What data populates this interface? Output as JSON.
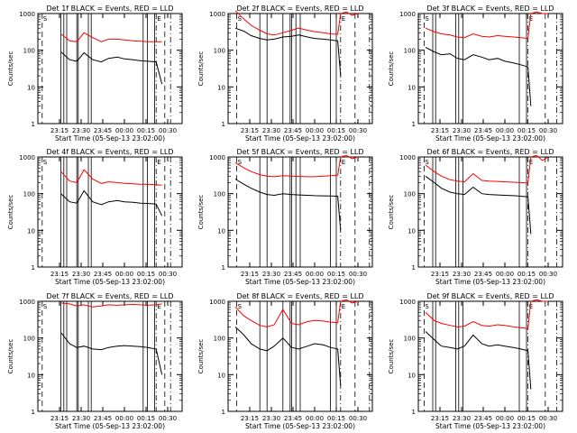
{
  "figure": {
    "ylabel": "Counts/sec",
    "xlabel": "Start Time (05-Sep-13 23:02:00)",
    "xtick_labels": [
      "23:15",
      "23:30",
      "23:45",
      "00:00",
      "00:15",
      "00:30"
    ],
    "ytick_labels": [
      "1",
      "10",
      "100",
      "1000"
    ],
    "annotations": [
      "S",
      "E"
    ],
    "colors": {
      "events": "#000000",
      "lld": "#ff0000",
      "axis": "#000000"
    }
  },
  "chart_data": [
    {
      "type": "line",
      "title": "Det 1f BLACK = Events, RED = LLD",
      "xlabel": "Start Time (05-Sep-13 23:02:00)",
      "ylabel": "Counts/sec",
      "x_minutes": [
        5,
        11,
        16,
        22,
        27,
        32,
        38,
        44,
        49,
        55,
        60,
        66,
        71,
        76,
        82,
        86,
        90
      ],
      "series": [
        {
          "name": "Events",
          "color": "#000000",
          "values": [
            null,
            null,
            90,
            55,
            50,
            85,
            55,
            48,
            60,
            65,
            58,
            55,
            52,
            50,
            48,
            12,
            null
          ]
        },
        {
          "name": "LLD",
          "color": "#ff0000",
          "values": [
            null,
            null,
            280,
            180,
            170,
            300,
            220,
            170,
            200,
            200,
            190,
            180,
            175,
            172,
            170,
            170,
            null
          ]
        }
      ],
      "vlines_solid": [
        16,
        18,
        20,
        27,
        28,
        35,
        37,
        73,
        76,
        81
      ],
      "vlines_dashed": [
        3,
        88
      ],
      "vlines_dashdot": [
        82,
        92
      ],
      "xlim": [
        0,
        100
      ],
      "ylim": [
        1,
        1000
      ],
      "yscale": "log"
    },
    {
      "type": "line",
      "title": "Det 2f BLACK = Events, RED = LLD",
      "xlabel": "Start Time (05-Sep-13 23:02:00)",
      "ylabel": "Counts/sec",
      "x_minutes": [
        5,
        11,
        16,
        22,
        27,
        32,
        38,
        44,
        49,
        55,
        60,
        66,
        71,
        76,
        78,
        82,
        86,
        90
      ],
      "series": [
        {
          "name": "Events",
          "color": "#000000",
          "values": [
            400,
            330,
            250,
            210,
            190,
            200,
            230,
            240,
            260,
            230,
            210,
            200,
            190,
            180,
            20,
            null,
            null,
            null
          ]
        },
        {
          "name": "LLD",
          "color": "#ff0000",
          "values": [
            1200,
            700,
            480,
            350,
            280,
            260,
            300,
            350,
            400,
            350,
            320,
            300,
            280,
            270,
            1000,
            1100,
            900,
            1000
          ]
        }
      ],
      "vlines_solid": [
        22,
        27,
        38,
        43,
        44,
        47,
        50,
        71,
        75
      ],
      "vlines_dashed": [
        6,
        88
      ],
      "vlines_dashdot": [
        78,
        98
      ],
      "xlim": [
        0,
        100
      ],
      "ylim": [
        1,
        1000
      ],
      "yscale": "log"
    },
    {
      "type": "line",
      "title": "Det 3f BLACK = Events, RED = LLD",
      "xlabel": "Start Time (05-Sep-13 23:02:00)",
      "ylabel": "Counts/sec",
      "x_minutes": [
        5,
        11,
        16,
        22,
        27,
        32,
        38,
        44,
        49,
        55,
        60,
        66,
        71,
        76,
        78,
        82,
        86,
        90
      ],
      "series": [
        {
          "name": "Events",
          "color": "#000000",
          "values": [
            120,
            90,
            75,
            80,
            60,
            55,
            75,
            65,
            55,
            60,
            50,
            45,
            40,
            35,
            3,
            null,
            null,
            null
          ]
        },
        {
          "name": "LLD",
          "color": "#ff0000",
          "values": [
            400,
            320,
            280,
            260,
            230,
            220,
            280,
            240,
            230,
            250,
            240,
            230,
            220,
            210,
            1000,
            1100,
            1000,
            1000
          ]
        }
      ],
      "vlines_solid": [
        10,
        12,
        26,
        28,
        31,
        70,
        75
      ],
      "vlines_dashed": [
        4,
        88
      ],
      "vlines_dashdot": [
        76,
        96
      ],
      "xlim": [
        0,
        100
      ],
      "ylim": [
        1,
        1000
      ],
      "yscale": "log"
    },
    {
      "type": "line",
      "title": "Det 4f BLACK = Events, RED = LLD",
      "xlabel": "Start Time (05-Sep-13 23:02:00)",
      "ylabel": "Counts/sec",
      "x_minutes": [
        5,
        11,
        16,
        22,
        27,
        32,
        38,
        44,
        49,
        55,
        60,
        66,
        71,
        76,
        82,
        86,
        90
      ],
      "series": [
        {
          "name": "Events",
          "color": "#000000",
          "values": [
            null,
            null,
            100,
            60,
            55,
            120,
            60,
            50,
            60,
            65,
            60,
            58,
            55,
            54,
            52,
            25,
            null
          ]
        },
        {
          "name": "LLD",
          "color": "#ff0000",
          "values": [
            null,
            null,
            400,
            220,
            200,
            450,
            250,
            190,
            210,
            200,
            190,
            185,
            180,
            180,
            175,
            170,
            null
          ]
        }
      ],
      "vlines_solid": [
        16,
        18,
        20,
        27,
        28,
        35,
        37,
        73,
        76,
        81
      ],
      "vlines_dashed": [
        3,
        88
      ],
      "vlines_dashdot": [
        82,
        92
      ],
      "xlim": [
        0,
        100
      ],
      "ylim": [
        1,
        1000
      ],
      "yscale": "log"
    },
    {
      "type": "line",
      "title": "Det 5f BLACK = Events, RED = LLD",
      "xlabel": "Start Time (05-Sep-13 23:02:00)",
      "ylabel": "Counts/sec",
      "x_minutes": [
        5,
        11,
        16,
        22,
        27,
        32,
        38,
        44,
        49,
        55,
        60,
        66,
        71,
        76,
        78,
        82,
        86,
        90
      ],
      "series": [
        {
          "name": "Events",
          "color": "#000000",
          "values": [
            250,
            180,
            140,
            110,
            95,
            90,
            100,
            95,
            92,
            90,
            88,
            87,
            86,
            85,
            10,
            null,
            null,
            null
          ]
        },
        {
          "name": "LLD",
          "color": "#ff0000",
          "values": [
            700,
            500,
            400,
            330,
            300,
            290,
            310,
            300,
            295,
            290,
            290,
            300,
            310,
            320,
            1000,
            1100,
            900,
            1000
          ]
        }
      ],
      "vlines_solid": [
        22,
        27,
        38,
        43,
        44,
        47,
        50,
        71,
        75
      ],
      "vlines_dashed": [
        6,
        88
      ],
      "vlines_dashdot": [
        78,
        98
      ],
      "xlim": [
        0,
        100
      ],
      "ylim": [
        1,
        1000
      ],
      "yscale": "log"
    },
    {
      "type": "line",
      "title": "Det 6f BLACK = Events, RED = LLD",
      "xlabel": "Start Time (05-Sep-13 23:02:00)",
      "ylabel": "Counts/sec",
      "x_minutes": [
        5,
        11,
        16,
        22,
        27,
        32,
        38,
        44,
        49,
        55,
        60,
        66,
        71,
        76,
        78,
        82,
        86,
        90
      ],
      "series": [
        {
          "name": "Events",
          "color": "#000000",
          "values": [
            300,
            200,
            140,
            110,
            100,
            95,
            150,
            100,
            95,
            92,
            90,
            88,
            85,
            82,
            8,
            null,
            null,
            null
          ]
        },
        {
          "name": "LLD",
          "color": "#ff0000",
          "values": [
            600,
            400,
            300,
            240,
            220,
            210,
            350,
            230,
            220,
            215,
            210,
            205,
            200,
            195,
            1000,
            1100,
            800,
            1000
          ]
        }
      ],
      "vlines_solid": [
        10,
        12,
        26,
        28,
        31,
        70,
        75
      ],
      "vlines_dashed": [
        4,
        88
      ],
      "vlines_dashdot": [
        76,
        96
      ],
      "xlim": [
        0,
        100
      ],
      "ylim": [
        1,
        1000
      ],
      "yscale": "log"
    },
    {
      "type": "line",
      "title": "Det 7f BLACK = Events, RED = LLD",
      "xlabel": "Start Time (05-Sep-13 23:02:00)",
      "ylabel": "Counts/sec",
      "x_minutes": [
        5,
        11,
        16,
        22,
        27,
        32,
        38,
        44,
        49,
        55,
        60,
        66,
        71,
        76,
        82,
        86,
        90
      ],
      "series": [
        {
          "name": "Events",
          "color": "#000000",
          "values": [
            null,
            null,
            140,
            70,
            55,
            60,
            50,
            48,
            55,
            60,
            62,
            60,
            58,
            55,
            50,
            10,
            null
          ]
        },
        {
          "name": "LLD",
          "color": "#ff0000",
          "values": [
            null,
            null,
            900,
            850,
            750,
            800,
            700,
            750,
            800,
            780,
            800,
            820,
            800,
            780,
            800,
            850,
            null
          ]
        }
      ],
      "vlines_solid": [
        16,
        18,
        20,
        27,
        28,
        35,
        37,
        73,
        76,
        81
      ],
      "vlines_dashed": [
        3,
        88
      ],
      "vlines_dashdot": [
        82,
        92
      ],
      "xlim": [
        0,
        100
      ],
      "ylim": [
        1,
        1000
      ],
      "yscale": "log"
    },
    {
      "type": "line",
      "title": "Det 8f BLACK = Events, RED = LLD",
      "xlabel": "Start Time (05-Sep-13 23:02:00)",
      "ylabel": "Counts/sec",
      "x_minutes": [
        5,
        11,
        16,
        22,
        27,
        32,
        38,
        44,
        49,
        55,
        60,
        66,
        71,
        76,
        78,
        82,
        86,
        90
      ],
      "series": [
        {
          "name": "Events",
          "color": "#000000",
          "values": [
            200,
            120,
            70,
            50,
            45,
            60,
            100,
            55,
            50,
            60,
            70,
            65,
            55,
            50,
            5,
            null,
            null,
            null
          ]
        },
        {
          "name": "LLD",
          "color": "#ff0000",
          "values": [
            700,
            400,
            300,
            220,
            200,
            230,
            600,
            250,
            230,
            280,
            300,
            290,
            270,
            260,
            1000,
            1100,
            900,
            1000
          ]
        }
      ],
      "vlines_solid": [
        22,
        27,
        38,
        43,
        44,
        47,
        50,
        71,
        75
      ],
      "vlines_dashed": [
        6,
        88
      ],
      "vlines_dashdot": [
        78,
        98
      ],
      "xlim": [
        0,
        100
      ],
      "ylim": [
        1,
        1000
      ],
      "yscale": "log"
    },
    {
      "type": "line",
      "title": "Det 9f BLACK = Events, RED = LLD",
      "xlabel": "Start Time (05-Sep-13 23:02:00)",
      "ylabel": "Counts/sec",
      "x_minutes": [
        5,
        11,
        16,
        22,
        27,
        32,
        38,
        44,
        49,
        55,
        60,
        66,
        71,
        76,
        78,
        82,
        86,
        90
      ],
      "series": [
        {
          "name": "Events",
          "color": "#000000",
          "values": [
            150,
            90,
            60,
            55,
            50,
            60,
            120,
            70,
            60,
            65,
            60,
            55,
            50,
            45,
            4,
            null,
            null,
            null
          ]
        },
        {
          "name": "LLD",
          "color": "#ff0000",
          "values": [
            500,
            300,
            250,
            220,
            200,
            210,
            280,
            220,
            210,
            230,
            220,
            200,
            190,
            180,
            1000,
            1100,
            1000,
            1000
          ]
        }
      ],
      "vlines_solid": [
        10,
        12,
        26,
        28,
        31,
        70,
        75
      ],
      "vlines_dashed": [
        4,
        88
      ],
      "vlines_dashdot": [
        76,
        96
      ],
      "xlim": [
        0,
        100
      ],
      "ylim": [
        1,
        1000
      ],
      "yscale": "log"
    }
  ]
}
